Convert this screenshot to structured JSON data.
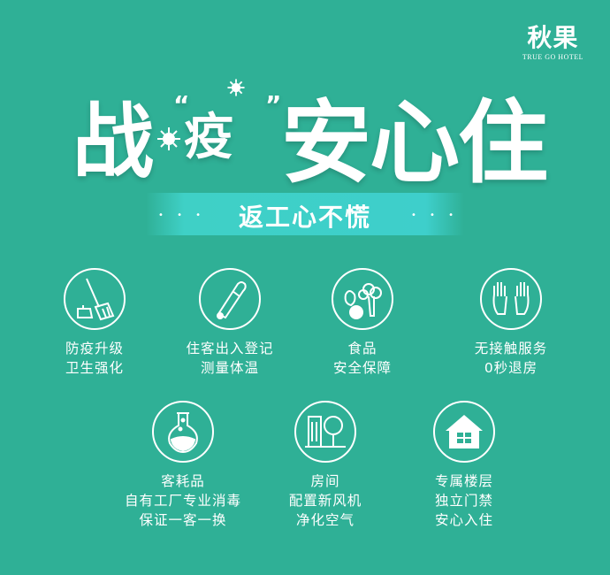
{
  "logo": {
    "name_cn": "秋果",
    "name_en": "TRUE GO HOTEL",
    "trademark": "酒店"
  },
  "title": {
    "part1": "战",
    "part2": "疫",
    "part3": "安心住",
    "quote_open": "“",
    "quote_close": "”"
  },
  "banner": {
    "text": "返工心不慌",
    "dots": "• • •"
  },
  "features": [
    {
      "icon": "broom-dustpan-icon",
      "lines": [
        "防疫升级",
        "卫生强化"
      ]
    },
    {
      "icon": "thermometer-icon",
      "lines": [
        "住客出入登记",
        "测量体温"
      ]
    },
    {
      "icon": "vegetables-icon",
      "lines": [
        "食品",
        "安全保障"
      ]
    },
    {
      "icon": "gloves-icon",
      "lines": [
        "无接触服务",
        "0秒退房"
      ]
    },
    {
      "icon": "flask-icon",
      "lines": [
        "客耗品",
        "自有工厂专业消毒",
        "保证一客一换"
      ]
    },
    {
      "icon": "building-tree-icon",
      "lines": [
        "房间",
        "配置新风机",
        "净化空气"
      ]
    },
    {
      "icon": "house-icon",
      "lines": [
        "专属楼层",
        "独立门禁",
        "安心入住"
      ]
    }
  ],
  "colors": {
    "background": "#2fb096",
    "banner": "#3ecfcb",
    "text": "#ffffff"
  }
}
